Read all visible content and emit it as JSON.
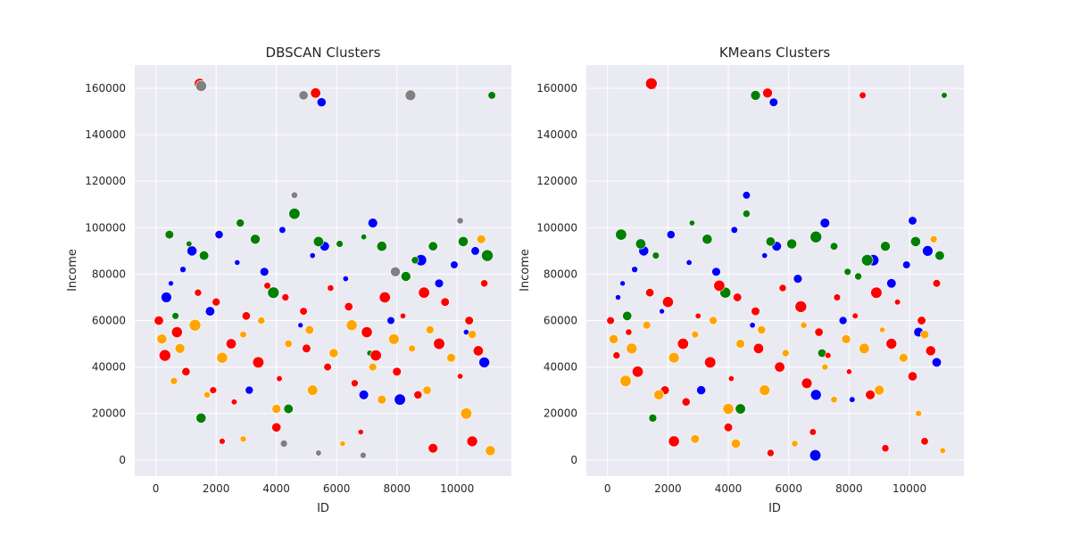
{
  "chart_data": [
    {
      "type": "scatter",
      "title": "DBSCAN Clusters",
      "xlabel": "ID",
      "ylabel": "Income",
      "xlim": [
        -700,
        11800
      ],
      "ylim": [
        -7000,
        170000
      ],
      "xticks": [
        0,
        2000,
        4000,
        6000,
        8000,
        10000
      ],
      "yticks": [
        0,
        20000,
        40000,
        60000,
        80000,
        100000,
        120000,
        140000,
        160000
      ],
      "grid": true,
      "legend": "none",
      "series": [
        {
          "color": "#0000ff",
          "points": [
            [
              500,
              76000
            ],
            [
              900,
              82000
            ],
            [
              1200,
              90000
            ],
            [
              2100,
              97000
            ],
            [
              3600,
              81000
            ],
            [
              4200,
              99000
            ],
            [
              5200,
              88000
            ],
            [
              5600,
              92000
            ],
            [
              7200,
              102000
            ],
            [
              8800,
              86000
            ],
            [
              9900,
              84000
            ],
            [
              10600,
              90000
            ],
            [
              350,
              70000
            ],
            [
              2700,
              85000
            ],
            [
              6300,
              78000
            ],
            [
              9400,
              76000
            ],
            [
              1800,
              64000
            ],
            [
              4800,
              58000
            ],
            [
              7800,
              60000
            ],
            [
              10300,
              55000
            ],
            [
              3100,
              30000
            ],
            [
              6900,
              28000
            ],
            [
              5500,
              154000
            ],
            [
              8100,
              26000
            ],
            [
              10900,
              42000
            ]
          ]
        },
        {
          "color": "#008000",
          "points": [
            [
              450,
              97000
            ],
            [
              1100,
              93000
            ],
            [
              1600,
              88000
            ],
            [
              2800,
              102000
            ],
            [
              3300,
              95000
            ],
            [
              4600,
              106000
            ],
            [
              5400,
              94000
            ],
            [
              6100,
              93000
            ],
            [
              6900,
              96000
            ],
            [
              7500,
              92000
            ],
            [
              8600,
              86000
            ],
            [
              9200,
              92000
            ],
            [
              10200,
              94000
            ],
            [
              11000,
              88000
            ],
            [
              11150,
              157000
            ],
            [
              650,
              62000
            ],
            [
              3900,
              72000
            ],
            [
              8300,
              79000
            ],
            [
              1500,
              18000
            ],
            [
              4400,
              22000
            ],
            [
              7100,
              46000
            ]
          ]
        },
        {
          "color": "#ff0000",
          "points": [
            [
              100,
              60000
            ],
            [
              700,
              55000
            ],
            [
              1400,
              72000
            ],
            [
              2000,
              68000
            ],
            [
              2500,
              50000
            ],
            [
              3000,
              62000
            ],
            [
              3700,
              75000
            ],
            [
              4300,
              70000
            ],
            [
              4900,
              64000
            ],
            [
              5800,
              74000
            ],
            [
              6400,
              66000
            ],
            [
              7000,
              55000
            ],
            [
              7600,
              70000
            ],
            [
              8200,
              62000
            ],
            [
              8900,
              72000
            ],
            [
              9600,
              68000
            ],
            [
              10400,
              60000
            ],
            [
              10900,
              76000
            ],
            [
              300,
              45000
            ],
            [
              1000,
              38000
            ],
            [
              1900,
              30000
            ],
            [
              2600,
              25000
            ],
            [
              3400,
              42000
            ],
            [
              4100,
              35000
            ],
            [
              5000,
              48000
            ],
            [
              5700,
              40000
            ],
            [
              6600,
              33000
            ],
            [
              7300,
              45000
            ],
            [
              8000,
              38000
            ],
            [
              8700,
              28000
            ],
            [
              9400,
              50000
            ],
            [
              10100,
              36000
            ],
            [
              10700,
              47000
            ],
            [
              5300,
              158000
            ],
            [
              1450,
              162000
            ],
            [
              2200,
              8000
            ],
            [
              6800,
              12000
            ],
            [
              9200,
              5000
            ],
            [
              10500,
              8000
            ],
            [
              4000,
              14000
            ]
          ]
        },
        {
          "color": "#ffa500",
          "points": [
            [
              200,
              52000
            ],
            [
              800,
              48000
            ],
            [
              1300,
              58000
            ],
            [
              2200,
              44000
            ],
            [
              2900,
              54000
            ],
            [
              3500,
              60000
            ],
            [
              4400,
              50000
            ],
            [
              5100,
              56000
            ],
            [
              5900,
              46000
            ],
            [
              6500,
              58000
            ],
            [
              7200,
              40000
            ],
            [
              7900,
              52000
            ],
            [
              8500,
              48000
            ],
            [
              9100,
              56000
            ],
            [
              9800,
              44000
            ],
            [
              10500,
              54000
            ],
            [
              600,
              34000
            ],
            [
              1700,
              28000
            ],
            [
              2900,
              9000
            ],
            [
              4000,
              22000
            ],
            [
              5200,
              30000
            ],
            [
              6200,
              7000
            ],
            [
              7500,
              26000
            ],
            [
              9000,
              30000
            ],
            [
              10300,
              20000
            ],
            [
              11100,
              4000
            ],
            [
              10800,
              95000
            ]
          ]
        },
        {
          "color": "#808080",
          "points": [
            [
              1500,
              161000
            ],
            [
              4900,
              157000
            ],
            [
              8450,
              157000
            ],
            [
              10100,
              103000
            ],
            [
              4600,
              114000
            ],
            [
              7950,
              81000
            ],
            [
              6880,
              2000
            ],
            [
              5400,
              3000
            ],
            [
              4250,
              7000
            ]
          ]
        }
      ]
    },
    {
      "type": "scatter",
      "title": "KMeans Clusters",
      "xlabel": "ID",
      "ylabel": "Income",
      "xlim": [
        -700,
        11800
      ],
      "ylim": [
        -7000,
        170000
      ],
      "xticks": [
        0,
        2000,
        4000,
        6000,
        8000,
        10000
      ],
      "yticks": [
        0,
        20000,
        40000,
        60000,
        80000,
        100000,
        120000,
        140000,
        160000
      ],
      "grid": true,
      "legend": "none",
      "series": [
        {
          "color": "#0000ff",
          "points": [
            [
              500,
              76000
            ],
            [
              900,
              82000
            ],
            [
              1200,
              90000
            ],
            [
              2100,
              97000
            ],
            [
              3600,
              81000
            ],
            [
              4200,
              99000
            ],
            [
              5200,
              88000
            ],
            [
              5600,
              92000
            ],
            [
              7200,
              102000
            ],
            [
              8800,
              86000
            ],
            [
              9900,
              84000
            ],
            [
              10100,
              103000
            ],
            [
              10600,
              90000
            ],
            [
              350,
              70000
            ],
            [
              2700,
              85000
            ],
            [
              6300,
              78000
            ],
            [
              9400,
              76000
            ],
            [
              1800,
              64000
            ],
            [
              4600,
              114000
            ],
            [
              4800,
              58000
            ],
            [
              7800,
              60000
            ],
            [
              10300,
              55000
            ],
            [
              3100,
              30000
            ],
            [
              6880,
              2000
            ],
            [
              6900,
              28000
            ],
            [
              5500,
              154000
            ],
            [
              8100,
              26000
            ],
            [
              10900,
              42000
            ]
          ]
        },
        {
          "color": "#008000",
          "points": [
            [
              1500,
              161000
            ],
            [
              4900,
              157000
            ],
            [
              450,
              97000
            ],
            [
              1100,
              93000
            ],
            [
              1600,
              88000
            ],
            [
              2800,
              102000
            ],
            [
              3300,
              95000
            ],
            [
              4600,
              106000
            ],
            [
              5400,
              94000
            ],
            [
              6100,
              93000
            ],
            [
              6900,
              96000
            ],
            [
              7500,
              92000
            ],
            [
              7950,
              81000
            ],
            [
              8600,
              86000
            ],
            [
              9200,
              92000
            ],
            [
              10200,
              94000
            ],
            [
              11000,
              88000
            ],
            [
              11150,
              157000
            ],
            [
              650,
              62000
            ],
            [
              3900,
              72000
            ],
            [
              8300,
              79000
            ],
            [
              1500,
              18000
            ],
            [
              4400,
              22000
            ],
            [
              7100,
              46000
            ]
          ]
        },
        {
          "color": "#ff0000",
          "points": [
            [
              8450,
              157000
            ],
            [
              5400,
              3000
            ],
            [
              100,
              60000
            ],
            [
              700,
              55000
            ],
            [
              1400,
              72000
            ],
            [
              2000,
              68000
            ],
            [
              2500,
              50000
            ],
            [
              3000,
              62000
            ],
            [
              3700,
              75000
            ],
            [
              4300,
              70000
            ],
            [
              4900,
              64000
            ],
            [
              5800,
              74000
            ],
            [
              6400,
              66000
            ],
            [
              7000,
              55000
            ],
            [
              7600,
              70000
            ],
            [
              8200,
              62000
            ],
            [
              8900,
              72000
            ],
            [
              9600,
              68000
            ],
            [
              10400,
              60000
            ],
            [
              10900,
              76000
            ],
            [
              300,
              45000
            ],
            [
              1000,
              38000
            ],
            [
              1900,
              30000
            ],
            [
              2600,
              25000
            ],
            [
              3400,
              42000
            ],
            [
              4100,
              35000
            ],
            [
              5000,
              48000
            ],
            [
              5700,
              40000
            ],
            [
              6600,
              33000
            ],
            [
              7300,
              45000
            ],
            [
              8000,
              38000
            ],
            [
              8700,
              28000
            ],
            [
              9400,
              50000
            ],
            [
              10100,
              36000
            ],
            [
              10700,
              47000
            ],
            [
              5300,
              158000
            ],
            [
              1450,
              162000
            ],
            [
              2200,
              8000
            ],
            [
              6800,
              12000
            ],
            [
              9200,
              5000
            ],
            [
              10500,
              8000
            ],
            [
              4000,
              14000
            ]
          ]
        },
        {
          "color": "#ffa500",
          "points": [
            [
              200,
              52000
            ],
            [
              800,
              48000
            ],
            [
              1300,
              58000
            ],
            [
              2200,
              44000
            ],
            [
              2900,
              54000
            ],
            [
              3500,
              60000
            ],
            [
              4400,
              50000
            ],
            [
              5100,
              56000
            ],
            [
              5900,
              46000
            ],
            [
              6500,
              58000
            ],
            [
              7200,
              40000
            ],
            [
              7900,
              52000
            ],
            [
              8500,
              48000
            ],
            [
              9100,
              56000
            ],
            [
              9800,
              44000
            ],
            [
              10500,
              54000
            ],
            [
              600,
              34000
            ],
            [
              1700,
              28000
            ],
            [
              2900,
              9000
            ],
            [
              4000,
              22000
            ],
            [
              4250,
              7000
            ],
            [
              5200,
              30000
            ],
            [
              6200,
              7000
            ],
            [
              7500,
              26000
            ],
            [
              9000,
              30000
            ],
            [
              10300,
              20000
            ],
            [
              11100,
              4000
            ],
            [
              10800,
              95000
            ]
          ]
        }
      ]
    }
  ]
}
